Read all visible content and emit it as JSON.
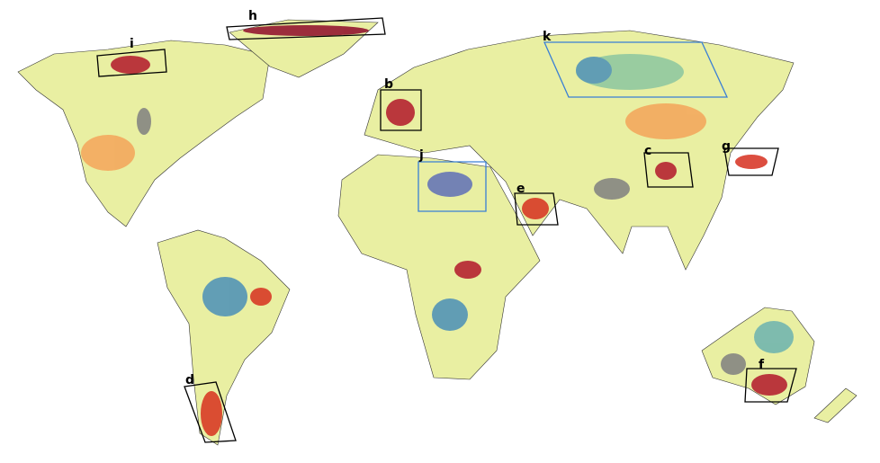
{
  "panels": [
    {
      "label": "h"
    },
    {
      "label": "i"
    },
    {
      "label": "b"
    },
    {
      "label": "k"
    },
    {
      "label": "c"
    },
    {
      "label": "g"
    },
    {
      "label": "j"
    },
    {
      "label": "e"
    },
    {
      "label": "d"
    },
    {
      "label": "f"
    }
  ]
}
